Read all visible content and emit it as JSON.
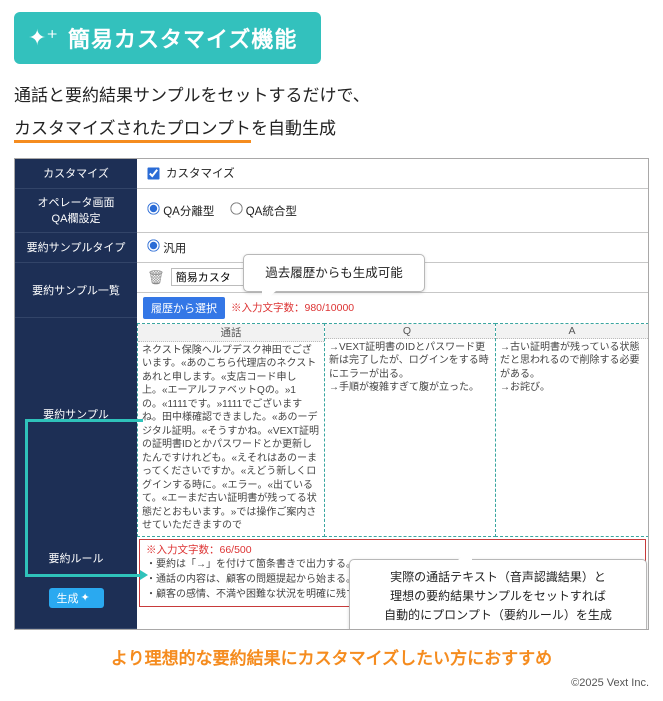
{
  "badge": {
    "icon": "✦⁺",
    "title": "簡易カスタマイズ機能"
  },
  "intro": {
    "line1": "通話と要約結果サンプルをセットするだけで、",
    "line2_underlined": "カスタマイズされたプロンプト",
    "line2_tail": "を自動生成"
  },
  "sidebar": {
    "customize": "カスタマイズ",
    "operator": "オペレータ画面\nQA欄設定",
    "sample_type": "要約サンプルタイプ",
    "sample_list": "要約サンプル一覧",
    "sample": "要約サンプル",
    "rule": "要約ルール",
    "generate_btn": "生成",
    "generate_icon": "✦"
  },
  "rows": {
    "customize_cb_label": "カスタマイズ",
    "qa_split": "QA分離型",
    "qa_unified": "QA統合型",
    "type_general": "汎用",
    "list_value": "簡易カスタ",
    "hist_btn": "履歴から選択",
    "char_hint": "※入力文字数：980/10000"
  },
  "grid": {
    "h1": "通話",
    "h2": "Q",
    "h3": "A",
    "c1": "ネクスト保険ヘルプデスク神田でございます。«あのこちら代理店のネクストあれと申します。«支店コード申し上。«エーアルファベットQの。»1の。«1111です。»1111でございますね。田中様確認できました。«あのーデジタル証明。«そうすかね。«VEXT証明の証明書IDとかパスワードとか更新したんですけれども。«えそれはあのーまってくださいですか。«えどう新しくログインする時に。«エラー。«出ているて。«エーまだ古い証明書が残ってる状態だとおもいます。»では操作ご案内させていただきますので",
    "c2": "→VEXT証明書のIDとパスワード更新は完了したが、ログインをする時にエラーが出る。\n→手順が複雑すぎて腹が立った。",
    "c3": "→古い証明書が残っている状態だと思われるので削除する必要がある。\n→お詫び。"
  },
  "rule": {
    "count": "※入力文字数：66/500",
    "body": "・要約は「→」を付けて箇条書きで出力する。\n・通話の内容は、顧客の問題提起から始まる。\n・顧客の感情、不満や困難な状況を明確に残す。"
  },
  "callouts": {
    "c1": "過去履歴からも生成可能",
    "c2_l1": "実際の通話テキスト（音声認識結果）と",
    "c2_l2": "理想の要約結果サンプルをセットすれば",
    "c2_l3": "自動的にプロンプト（要約ルール）を生成"
  },
  "outro": "より理想的な要約結果にカスタマイズしたい方におすすめ",
  "copyright": "©2025 Vext Inc.",
  "colors": {
    "accent_teal": "#33c1bd",
    "accent_orange": "#f58c1f",
    "sidebar_bg": "#1d2f55",
    "blue_btn": "#3477e6",
    "rule_border": "#c83a3a"
  }
}
